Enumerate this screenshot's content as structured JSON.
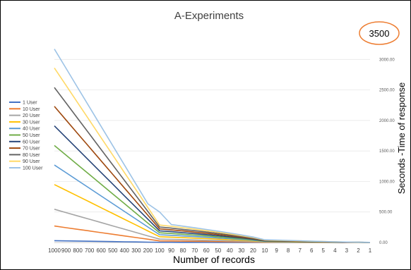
{
  "chart_data": {
    "type": "line",
    "title": "A-Experiments",
    "xlabel": "Number of records",
    "ylabel": "Seconds -Time of response",
    "annotation": "3500",
    "annotation_color": "#ed7d31",
    "ylim": [
      0,
      3500
    ],
    "yticks": [
      "0.00",
      "500.00",
      "1000.00",
      "1500.00",
      "2000.00",
      "2500.00",
      "3000.00"
    ],
    "x": [
      "1000",
      "900",
      "800",
      "700",
      "600",
      "500",
      "400",
      "300",
      "200",
      "100",
      "90",
      "80",
      "70",
      "60",
      "50",
      "40",
      "30",
      "20",
      "10",
      "9",
      "8",
      "7",
      "6",
      "5",
      "4",
      "3",
      "2",
      "1"
    ],
    "grid": true,
    "legend_position": "left",
    "series": [
      {
        "name": "1 User",
        "color": "#4472c4",
        "values": [
          30,
          27,
          24,
          21,
          18,
          15,
          12,
          9,
          6,
          3,
          3,
          2,
          2,
          2,
          1,
          1,
          1,
          1,
          0,
          0,
          0,
          0,
          0,
          0,
          0,
          0,
          0,
          0
        ]
      },
      {
        "name": "10 User",
        "color": "#ed7d31",
        "values": [
          270,
          243,
          216,
          189,
          162,
          135,
          108,
          81,
          54,
          27,
          25,
          22,
          20,
          18,
          15,
          12,
          10,
          7,
          4,
          3,
          3,
          2,
          2,
          1,
          1,
          1,
          0,
          0
        ]
      },
      {
        "name": "20 User",
        "color": "#a5a5a5",
        "values": [
          545,
          490,
          436,
          381,
          327,
          272,
          218,
          163,
          109,
          56,
          52,
          47,
          42,
          37,
          32,
          26,
          21,
          15,
          8,
          7,
          6,
          5,
          4,
          3,
          2,
          2,
          1,
          0
        ]
      },
      {
        "name": "30 User",
        "color": "#ffc000",
        "values": [
          950,
          855,
          760,
          665,
          570,
          475,
          380,
          285,
          190,
          95,
          88,
          80,
          72,
          64,
          55,
          46,
          37,
          27,
          14,
          12,
          10,
          8,
          7,
          5,
          4,
          3,
          2,
          1
        ]
      },
      {
        "name": "40 User",
        "color": "#5b9bd5",
        "values": [
          1270,
          1143,
          1016,
          889,
          762,
          635,
          508,
          381,
          254,
          127,
          118,
          108,
          97,
          86,
          74,
          62,
          50,
          36,
          18,
          16,
          14,
          11,
          9,
          7,
          5,
          4,
          2,
          1
        ]
      },
      {
        "name": "50 User",
        "color": "#70ad47",
        "values": [
          1590,
          1431,
          1272,
          1113,
          954,
          795,
          636,
          477,
          318,
          159,
          148,
          135,
          121,
          107,
          93,
          78,
          62,
          45,
          23,
          20,
          17,
          14,
          11,
          9,
          6,
          4,
          3,
          1
        ]
      },
      {
        "name": "60 User",
        "color": "#264478",
        "values": [
          1910,
          1719,
          1528,
          1337,
          1146,
          955,
          764,
          573,
          382,
          191,
          178,
          162,
          146,
          129,
          112,
          94,
          75,
          54,
          27,
          24,
          21,
          17,
          14,
          11,
          8,
          5,
          3,
          1
        ]
      },
      {
        "name": "70 User",
        "color": "#9e480e",
        "values": [
          2230,
          2007,
          1784,
          1561,
          1338,
          1115,
          892,
          669,
          446,
          223,
          207,
          189,
          170,
          151,
          131,
          110,
          87,
          63,
          32,
          28,
          24,
          20,
          16,
          12,
          9,
          6,
          3,
          1
        ]
      },
      {
        "name": "80 User",
        "color": "#636363",
        "values": [
          2540,
          2286,
          2032,
          1778,
          1524,
          1270,
          1016,
          762,
          508,
          254,
          236,
          215,
          194,
          172,
          149,
          125,
          100,
          72,
          36,
          32,
          28,
          23,
          18,
          14,
          10,
          7,
          4,
          2
        ]
      },
      {
        "name": "90 User",
        "color": "#ffd966",
        "values": [
          2860,
          2574,
          2288,
          2002,
          1716,
          1430,
          1144,
          858,
          572,
          286,
          266,
          242,
          218,
          193,
          168,
          141,
          112,
          81,
          41,
          36,
          31,
          26,
          21,
          16,
          11,
          8,
          4,
          2
        ]
      },
      {
        "name": "100 User",
        "color": "#9dc3e6",
        "values": [
          3170,
          2853,
          2536,
          2219,
          1902,
          1585,
          1268,
          951,
          634,
          500,
          295,
          268,
          241,
          214,
          186,
          156,
          124,
          90,
          45,
          40,
          35,
          29,
          23,
          17,
          12,
          8,
          5,
          2
        ]
      }
    ]
  }
}
